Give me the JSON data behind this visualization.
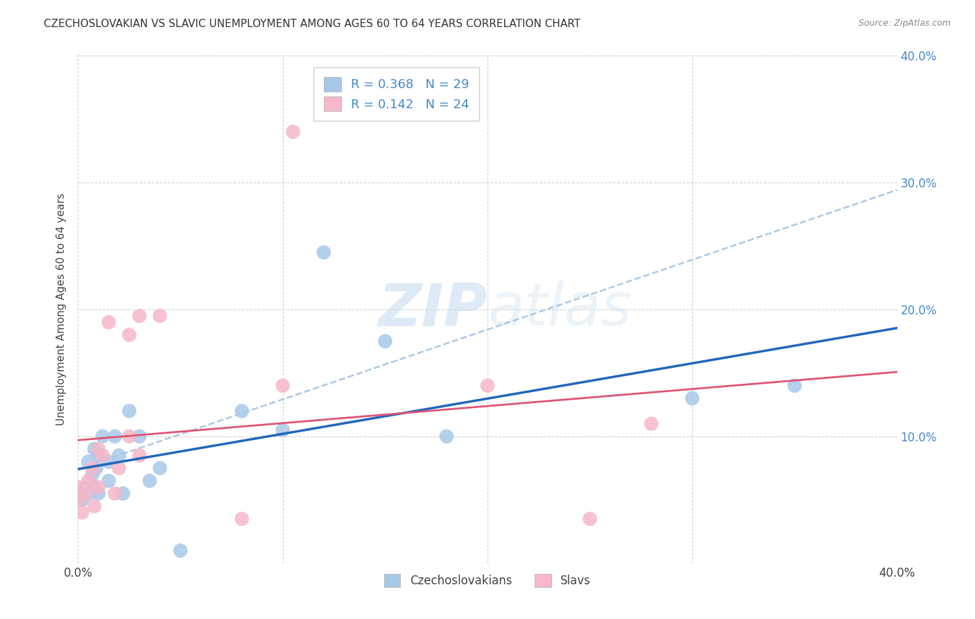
{
  "title": "CZECHOSLOVAKIAN VS SLAVIC UNEMPLOYMENT AMONG AGES 60 TO 64 YEARS CORRELATION CHART",
  "source": "Source: ZipAtlas.com",
  "ylabel": "Unemployment Among Ages 60 to 64 years",
  "xlim": [
    0.0,
    0.4
  ],
  "ylim": [
    0.0,
    0.4
  ],
  "czech_R": 0.368,
  "czech_N": 29,
  "slav_R": 0.142,
  "slav_N": 24,
  "czech_color": "#a8c8e8",
  "czech_line_color": "#2266bb",
  "czech_dash_color": "#99bbdd",
  "slav_color": "#f5b8c8",
  "slav_line_color": "#dd5577",
  "watermark_zip": "ZIP",
  "watermark_atlas": "atlas",
  "czech_x": [
    0.0,
    0.002,
    0.003,
    0.005,
    0.005,
    0.007,
    0.008,
    0.008,
    0.009,
    0.01,
    0.01,
    0.012,
    0.015,
    0.015,
    0.018,
    0.02,
    0.022,
    0.025,
    0.03,
    0.035,
    0.04,
    0.05,
    0.08,
    0.1,
    0.12,
    0.15,
    0.18,
    0.3,
    0.35
  ],
  "czech_y": [
    0.055,
    0.05,
    0.06,
    0.055,
    0.08,
    0.07,
    0.06,
    0.09,
    0.075,
    0.055,
    0.085,
    0.1,
    0.065,
    0.08,
    0.1,
    0.085,
    0.055,
    0.12,
    0.1,
    0.065,
    0.075,
    0.01,
    0.12,
    0.105,
    0.245,
    0.175,
    0.1,
    0.13,
    0.14
  ],
  "slav_x": [
    0.0,
    0.0,
    0.002,
    0.004,
    0.005,
    0.007,
    0.008,
    0.01,
    0.01,
    0.012,
    0.015,
    0.018,
    0.02,
    0.025,
    0.025,
    0.03,
    0.03,
    0.04,
    0.08,
    0.1,
    0.105,
    0.2,
    0.25,
    0.28
  ],
  "slav_y": [
    0.05,
    0.06,
    0.04,
    0.055,
    0.065,
    0.075,
    0.045,
    0.09,
    0.06,
    0.085,
    0.19,
    0.055,
    0.075,
    0.18,
    0.1,
    0.085,
    0.195,
    0.195,
    0.035,
    0.14,
    0.34,
    0.14,
    0.035,
    0.11
  ],
  "ytick_labels": [
    "",
    "10.0%",
    "20.0%",
    "30.0%",
    "40.0%"
  ],
  "ytick_color": "#4488cc",
  "xtick_labels_show": [
    "0.0%",
    "40.0%"
  ],
  "bottom_legend_czech": "Czechoslovakians",
  "bottom_legend_slav": "Slavs"
}
